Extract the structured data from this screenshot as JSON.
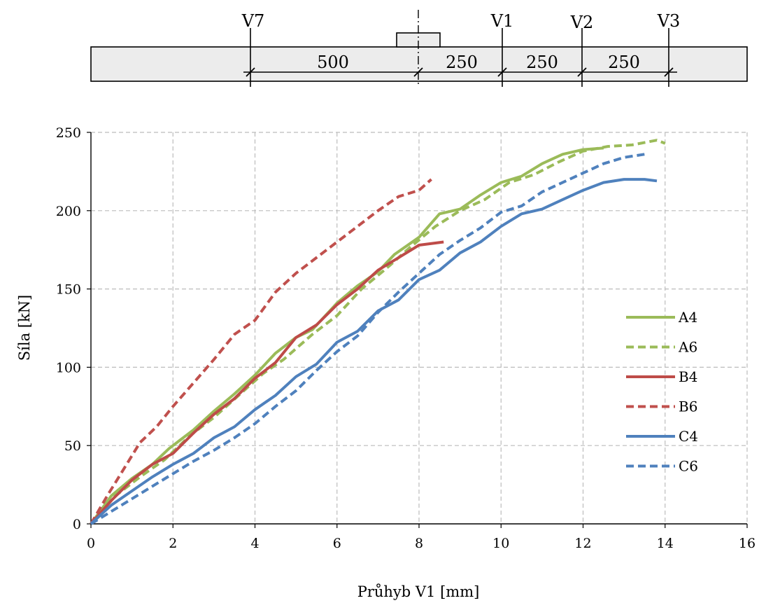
{
  "diagram": {
    "section_labels": [
      "V7",
      "V1",
      "V2",
      "V3"
    ],
    "dimensions": [
      "500",
      "250",
      "250",
      "250"
    ]
  },
  "chart_data": {
    "type": "line",
    "xlabel": "Průhyb V1 [mm]",
    "ylabel": "Síla [kN]",
    "xlim": [
      0,
      16
    ],
    "ylim": [
      0,
      250
    ],
    "xticks": [
      "0",
      "2",
      "4",
      "6",
      "8",
      "10",
      "12",
      "14",
      "16"
    ],
    "yticks": [
      "0",
      "50",
      "100",
      "150",
      "200",
      "250"
    ],
    "grid": true,
    "legend": "right",
    "series": [
      {
        "name": "A4",
        "color": "#9bbb59",
        "dash": false,
        "x": [
          0,
          0.5,
          1.0,
          1.5,
          1.9,
          2.5,
          3.0,
          3.5,
          4.0,
          4.5,
          5.0,
          5.4,
          6.0,
          6.5,
          7.0,
          7.4,
          8.0,
          8.5,
          9.0,
          9.5,
          10.0,
          10.5,
          11.0,
          11.5,
          12.0,
          12.5
        ],
        "y": [
          0,
          18,
          29,
          38,
          48,
          60,
          72,
          83,
          95,
          109,
          119,
          124,
          141,
          152,
          161,
          172,
          183,
          198,
          201,
          210,
          218,
          222,
          230,
          236,
          239,
          240
        ]
      },
      {
        "name": "A6",
        "color": "#9bbb59",
        "dash": true,
        "x": [
          0,
          0.6,
          1.2,
          1.8,
          2.4,
          3.0,
          3.6,
          4.2,
          4.7,
          5.4,
          6.0,
          6.6,
          7.2,
          7.8,
          8.4,
          9.0,
          9.6,
          10.2,
          10.8,
          11.4,
          12.0,
          12.6,
          13.2,
          13.8,
          14.0
        ],
        "y": [
          0,
          18,
          30,
          41,
          56,
          68,
          82,
          96,
          105,
          121,
          133,
          150,
          163,
          177,
          190,
          200,
          207,
          218,
          223,
          231,
          238,
          241,
          242,
          245,
          243
        ]
      },
      {
        "name": "B4",
        "color": "#be4b48",
        "dash": false,
        "x": [
          0,
          0.5,
          1.0,
          1.5,
          2.0,
          2.5,
          3.0,
          3.5,
          4.0,
          4.5,
          5.0,
          5.5,
          6.0,
          6.5,
          7.0,
          7.5,
          8.0,
          8.6
        ],
        "y": [
          0,
          15,
          28,
          38,
          45,
          58,
          70,
          80,
          93,
          103,
          119,
          127,
          140,
          150,
          162,
          170,
          178,
          180
        ]
      },
      {
        "name": "B6",
        "color": "#c0504d",
        "dash": true,
        "x": [
          0,
          0.4,
          0.8,
          1.2,
          1.6,
          2.0,
          2.5,
          3.0,
          3.5,
          4.0,
          4.5,
          5.0,
          5.5,
          6.0,
          6.5,
          7.0,
          7.5,
          8.0,
          8.3
        ],
        "y": [
          0,
          18,
          35,
          52,
          62,
          75,
          90,
          105,
          121,
          130,
          148,
          160,
          170,
          180,
          190,
          200,
          209,
          213,
          220
        ]
      },
      {
        "name": "C4",
        "color": "#4f81bd",
        "dash": false,
        "x": [
          0,
          0.5,
          1.0,
          1.5,
          2.0,
          2.5,
          3.0,
          3.5,
          4.0,
          4.5,
          5.0,
          5.5,
          6.0,
          6.5,
          7.0,
          7.5,
          8.0,
          8.5,
          9.0,
          9.5,
          10.0,
          10.5,
          11.0,
          11.5,
          12.0,
          12.5,
          13.0,
          13.5,
          13.8
        ],
        "y": [
          0,
          12,
          21,
          30,
          38,
          45,
          55,
          62,
          73,
          82,
          94,
          102,
          116,
          123,
          136,
          143,
          156,
          162,
          173,
          180,
          190,
          198,
          201,
          207,
          213,
          218,
          220,
          220,
          219
        ]
      },
      {
        "name": "C6",
        "color": "#4f81bd",
        "dash": true,
        "x": [
          0,
          0.5,
          1.0,
          1.5,
          2.0,
          2.5,
          3.0,
          3.5,
          4.0,
          4.5,
          5.0,
          5.5,
          6.0,
          6.5,
          7.0,
          7.5,
          8.0,
          8.5,
          9.0,
          9.5,
          10.0,
          10.5,
          11.0,
          11.5,
          12.0,
          12.5,
          13.0,
          13.5
        ],
        "y": [
          0,
          8,
          16,
          24,
          32,
          40,
          47,
          55,
          64,
          75,
          85,
          98,
          110,
          120,
          135,
          148,
          160,
          172,
          181,
          189,
          199,
          203,
          212,
          218,
          224,
          230,
          234,
          236
        ]
      }
    ]
  }
}
